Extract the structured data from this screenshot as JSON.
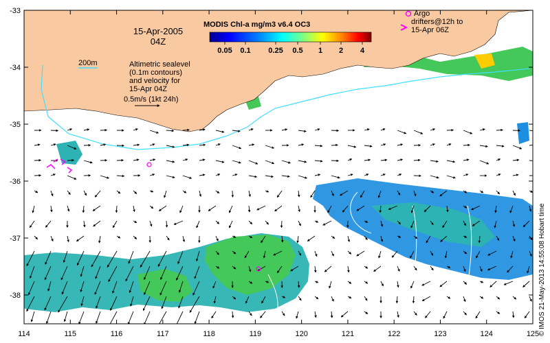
{
  "map": {
    "date": "15-Apr-2005",
    "time": "04Z",
    "colorbar": {
      "title": "MODIS Chl-a mg/m3 v6.4 OC3",
      "ticks": [
        "0.05",
        "0.1",
        "0.25",
        "0.5",
        "1",
        "2",
        "4"
      ],
      "colors": [
        "#00008f",
        "#0000ff",
        "#0080ff",
        "#00ffff",
        "#80ff80",
        "#ffff00",
        "#ff8000",
        "#ff0000",
        "#800000"
      ]
    },
    "contour_label": "200m",
    "legend_lines": [
      "Altimetric sealevel",
      "(0.1m contours)",
      "and velocity for",
      "15-Apr 04Z"
    ],
    "scale_label": "0.5m/s (1kt 24h)",
    "argo_lines": [
      "Argo",
      "drifters@12h to",
      "15-Apr 06Z"
    ],
    "credit": "© IMOS 21-May-2013 14:55:08 Hobart time",
    "x_ticks": [
      "114",
      "115",
      "116",
      "117",
      "118",
      "119",
      "120",
      "121",
      "122",
      "123",
      "124",
      "125"
    ],
    "y_ticks": [
      "-33",
      "-34",
      "-35",
      "-36",
      "-37",
      "-38"
    ],
    "colors": {
      "land": "#f9c9a2",
      "contour": "#40e0ff",
      "argo": "#ff00ff",
      "chl_low": "#1e90ff",
      "chl_mid": "#33cc66",
      "chl_high": "#ffcc00"
    }
  }
}
